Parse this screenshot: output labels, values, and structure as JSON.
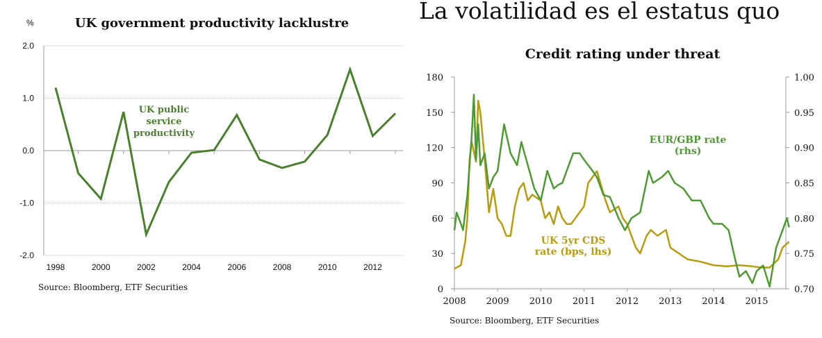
{
  "headline": "La volatilidad es el estatus quo",
  "colors": {
    "green": "#4a7f2c",
    "green2": "#4e9a32",
    "gold": "#b89c0c",
    "axis": "#999999"
  },
  "chart_data": [
    {
      "type": "line",
      "title": "UK government productivity lacklustre",
      "ylabel": "%",
      "ylim": [
        -2.0,
        2.0
      ],
      "yticks": [
        "2.0",
        "1.0",
        "0.0",
        "-1.0",
        "-2.0"
      ],
      "xticks": [
        "1998",
        "2000",
        "2002",
        "2004",
        "2006",
        "2008",
        "2010",
        "2012"
      ],
      "grid": true,
      "source": "Source: Bloomberg, ETF Securities",
      "series": [
        {
          "name": "UK public service productivity",
          "label_lines": [
            "UK public",
            "service",
            "productivity"
          ],
          "x": [
            1998,
            1999,
            2000,
            2001,
            2002,
            2003,
            2004,
            2005,
            2006,
            2007,
            2008,
            2009,
            2010,
            2011,
            2012,
            2013
          ],
          "values": [
            1.2,
            -0.43,
            -0.92,
            0.74,
            -1.6,
            -0.6,
            -0.04,
            0.01,
            0.68,
            -0.17,
            -0.33,
            -0.21,
            0.3,
            1.55,
            0.28,
            0.71
          ]
        }
      ]
    },
    {
      "type": "line",
      "title": "Credit rating under threat",
      "ylim": [
        0,
        180
      ],
      "y2lim": [
        0.7,
        1.0
      ],
      "yticks": [
        "180",
        "150",
        "120",
        "90",
        "60",
        "30",
        "0"
      ],
      "y2ticks": [
        "1.00",
        "0.95",
        "0.90",
        "0.85",
        "0.80",
        "0.75",
        "0.70"
      ],
      "xticks": [
        "2008",
        "2009",
        "2010",
        "2011",
        "2012",
        "2013",
        "2014",
        "2015"
      ],
      "source": "Source: Bloomberg, ETF Securities",
      "series": [
        {
          "name": "UK 5yr CDS rate (bps, lhs)",
          "label_lines": [
            "UK 5yr CDS",
            "rate (bps, lhs)"
          ],
          "axis": "left",
          "x": [
            2008.0,
            2008.15,
            2008.25,
            2008.3,
            2008.35,
            2008.4,
            2008.5,
            2008.55,
            2008.6,
            2008.7,
            2008.8,
            2008.9,
            2009.0,
            2009.1,
            2009.2,
            2009.3,
            2009.4,
            2009.5,
            2009.6,
            2009.7,
            2009.8,
            2010.0,
            2010.1,
            2010.2,
            2010.3,
            2010.4,
            2010.5,
            2010.6,
            2010.7,
            2010.8,
            2011.0,
            2011.1,
            2011.2,
            2011.3,
            2011.5,
            2011.6,
            2011.8,
            2011.9,
            2012.0,
            2012.2,
            2012.3,
            2012.45,
            2012.55,
            2012.7,
            2012.9,
            2013.0,
            2013.2,
            2013.4,
            2013.7,
            2014.0,
            2014.3,
            2014.6,
            2014.9,
            2015.1,
            2015.3,
            2015.5,
            2015.6,
            2015.75
          ],
          "values": [
            17,
            20,
            40,
            60,
            110,
            125,
            108,
            160,
            150,
            110,
            65,
            85,
            60,
            55,
            45,
            45,
            70,
            85,
            90,
            75,
            80,
            75,
            60,
            65,
            55,
            70,
            60,
            55,
            55,
            60,
            70,
            90,
            95,
            100,
            75,
            65,
            70,
            60,
            55,
            35,
            30,
            45,
            50,
            45,
            50,
            35,
            30,
            25,
            23,
            20,
            19,
            20,
            19,
            18,
            18,
            25,
            35,
            40
          ]
        },
        {
          "name": "EUR/GBP rate (rhs)",
          "label_lines": [
            "EUR/GBP rate",
            "(rhs)"
          ],
          "axis": "right",
          "x": [
            2008.0,
            2008.05,
            2008.15,
            2008.2,
            2008.3,
            2008.4,
            2008.45,
            2008.5,
            2008.55,
            2008.6,
            2008.7,
            2008.8,
            2008.9,
            2009.0,
            2009.15,
            2009.3,
            2009.45,
            2009.55,
            2009.7,
            2009.85,
            2010.0,
            2010.15,
            2010.3,
            2010.4,
            2010.5,
            2010.6,
            2010.75,
            2010.9,
            2011.0,
            2011.2,
            2011.3,
            2011.45,
            2011.6,
            2011.8,
            2011.95,
            2012.1,
            2012.3,
            2012.5,
            2012.6,
            2012.8,
            2012.95,
            2013.1,
            2013.3,
            2013.5,
            2013.7,
            2013.9,
            2014.0,
            2014.2,
            2014.35,
            2014.5,
            2014.6,
            2014.75,
            2014.9,
            2015.0,
            2015.15,
            2015.3,
            2015.45,
            2015.6,
            2015.7,
            2015.75
          ],
          "values": [
            0.783,
            0.808,
            0.792,
            0.783,
            0.833,
            0.917,
            0.975,
            0.883,
            0.933,
            0.875,
            0.892,
            0.842,
            0.858,
            0.867,
            0.933,
            0.892,
            0.875,
            0.908,
            0.875,
            0.842,
            0.825,
            0.867,
            0.842,
            0.847,
            0.85,
            0.867,
            0.892,
            0.892,
            0.883,
            0.867,
            0.858,
            0.833,
            0.83,
            0.8,
            0.783,
            0.8,
            0.808,
            0.867,
            0.85,
            0.858,
            0.867,
            0.85,
            0.842,
            0.825,
            0.825,
            0.8,
            0.792,
            0.792,
            0.783,
            0.742,
            0.717,
            0.725,
            0.708,
            0.725,
            0.733,
            0.703,
            0.758,
            0.783,
            0.8,
            0.787
          ]
        }
      ]
    }
  ]
}
